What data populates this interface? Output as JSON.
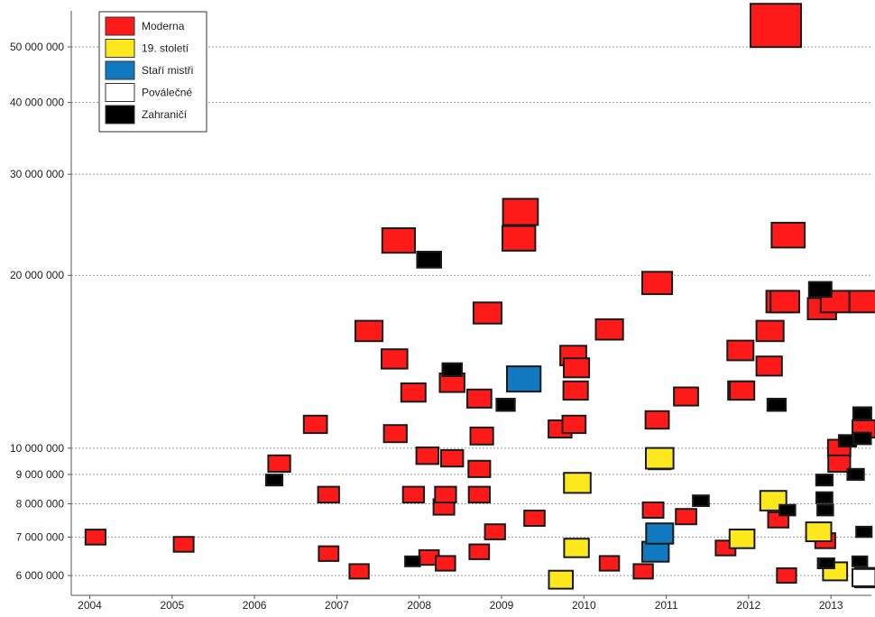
{
  "chart_data": {
    "type": "scatter",
    "title": "",
    "xlabel": "",
    "ylabel": "",
    "x_ticks": [
      "2004",
      "2005",
      "2006",
      "2007",
      "2008",
      "2009",
      "2010",
      "2011",
      "2012",
      "2013"
    ],
    "y_ticks": [
      {
        "value": 6000000,
        "label": "6 000 000"
      },
      {
        "value": 7000000,
        "label": "7 000 000"
      },
      {
        "value": 8000000,
        "label": "8 000 000"
      },
      {
        "value": 9000000,
        "label": "9 000 000"
      },
      {
        "value": 10000000,
        "label": "10 000 000"
      },
      {
        "value": 20000000,
        "label": "20 000 000"
      },
      {
        "value": 30000000,
        "label": "30 000 000"
      },
      {
        "value": 40000000,
        "label": "40 000 000"
      },
      {
        "value": 50000000,
        "label": "50 000 000"
      }
    ],
    "y_scale": "log",
    "ylim": [
      5600000,
      58000000
    ],
    "xlim": [
      2003.9,
      2013.45
    ],
    "grid": "horizontal dotted",
    "legend_position": "top-left",
    "series": [
      {
        "name": "Moderna",
        "color": "#ff1a1a",
        "points": [
          {
            "x": 2004.07,
            "y": 7000000
          },
          {
            "x": 2005.14,
            "y": 6800000
          },
          {
            "x": 2006.3,
            "y": 9400000
          },
          {
            "x": 2006.74,
            "y": 11000000
          },
          {
            "x": 2006.9,
            "y": 8300000
          },
          {
            "x": 2006.9,
            "y": 6550000
          },
          {
            "x": 2007.27,
            "y": 6100000
          },
          {
            "x": 2007.39,
            "y": 16000000
          },
          {
            "x": 2007.7,
            "y": 14300000
          },
          {
            "x": 2007.71,
            "y": 10600000
          },
          {
            "x": 2007.75,
            "y": 23000000
          },
          {
            "x": 2007.93,
            "y": 12500000
          },
          {
            "x": 2007.93,
            "y": 8300000
          },
          {
            "x": 2008.1,
            "y": 9700000
          },
          {
            "x": 2008.12,
            "y": 6450000
          },
          {
            "x": 2008.3,
            "y": 7900000
          },
          {
            "x": 2008.32,
            "y": 8300000
          },
          {
            "x": 2008.32,
            "y": 6300000
          },
          {
            "x": 2008.4,
            "y": 13000000
          },
          {
            "x": 2008.4,
            "y": 9600000
          },
          {
            "x": 2008.73,
            "y": 6600000
          },
          {
            "x": 2008.73,
            "y": 12200000
          },
          {
            "x": 2008.73,
            "y": 9200000
          },
          {
            "x": 2008.73,
            "y": 8300000
          },
          {
            "x": 2008.76,
            "y": 10500000
          },
          {
            "x": 2008.83,
            "y": 17200000
          },
          {
            "x": 2008.92,
            "y": 7150000
          },
          {
            "x": 2009.21,
            "y": 23200000
          },
          {
            "x": 2009.23,
            "y": 25800000
          },
          {
            "x": 2009.27,
            "y": 13200000
          },
          {
            "x": 2009.4,
            "y": 7550000
          },
          {
            "x": 2009.71,
            "y": 10800000
          },
          {
            "x": 2009.87,
            "y": 14500000
          },
          {
            "x": 2009.88,
            "y": 11000000
          },
          {
            "x": 2009.9,
            "y": 12600000
          },
          {
            "x": 2009.91,
            "y": 13800000
          },
          {
            "x": 2010.31,
            "y": 6300000
          },
          {
            "x": 2010.31,
            "y": 16100000
          },
          {
            "x": 2010.72,
            "y": 6100000
          },
          {
            "x": 2010.84,
            "y": 7800000
          },
          {
            "x": 2010.89,
            "y": 19400000
          },
          {
            "x": 2010.89,
            "y": 11200000
          },
          {
            "x": 2010.92,
            "y": 9500000
          },
          {
            "x": 2011.24,
            "y": 7600000
          },
          {
            "x": 2011.24,
            "y": 12300000
          },
          {
            "x": 2011.72,
            "y": 6700000
          },
          {
            "x": 2011.9,
            "y": 14800000
          },
          {
            "x": 2011.9,
            "y": 12600000
          },
          {
            "x": 2011.92,
            "y": 12600000
          },
          {
            "x": 2011.92,
            "y": 6950000
          },
          {
            "x": 2012.25,
            "y": 13900000
          },
          {
            "x": 2012.26,
            "y": 16000000
          },
          {
            "x": 2012.33,
            "y": 54500000
          },
          {
            "x": 2012.36,
            "y": 7500000
          },
          {
            "x": 2012.39,
            "y": 18000000
          },
          {
            "x": 2012.44,
            "y": 18000000
          },
          {
            "x": 2012.46,
            "y": 6000000
          },
          {
            "x": 2012.48,
            "y": 23500000
          },
          {
            "x": 2012.89,
            "y": 17500000
          },
          {
            "x": 2012.93,
            "y": 6900000
          },
          {
            "x": 2013.05,
            "y": 18000000
          },
          {
            "x": 2013.1,
            "y": 10000000
          },
          {
            "x": 2013.1,
            "y": 9400000
          },
          {
            "x": 2013.4,
            "y": 18000000
          },
          {
            "x": 2013.4,
            "y": 10800000
          }
        ]
      },
      {
        "name": "19. století",
        "color": "#fce81d",
        "points": [
          {
            "x": 2009.72,
            "y": 5900000
          },
          {
            "x": 2009.91,
            "y": 6700000
          },
          {
            "x": 2009.92,
            "y": 8700000
          },
          {
            "x": 2010.92,
            "y": 9600000
          },
          {
            "x": 2011.92,
            "y": 6950000
          },
          {
            "x": 2012.3,
            "y": 8100000
          },
          {
            "x": 2012.85,
            "y": 7150000
          },
          {
            "x": 2013.05,
            "y": 6100000
          }
        ]
      },
      {
        "name": "Staří mistři",
        "color": "#1079c0",
        "points": [
          {
            "x": 2009.27,
            "y": 13200000
          },
          {
            "x": 2010.87,
            "y": 6600000
          },
          {
            "x": 2010.92,
            "y": 7100000
          },
          {
            "x": 2013.45,
            "y": 5950000
          }
        ]
      },
      {
        "name": "Poválečné",
        "color": "#ffffff",
        "points": [
          {
            "x": 2013.4,
            "y": 5950000
          }
        ]
      },
      {
        "name": "Zahraničí",
        "color": "#000000",
        "points": [
          {
            "x": 2006.24,
            "y": 8800000
          },
          {
            "x": 2007.92,
            "y": 6350000
          },
          {
            "x": 2008.12,
            "y": 21300000
          },
          {
            "x": 2008.4,
            "y": 13700000
          },
          {
            "x": 2009.05,
            "y": 11900000
          },
          {
            "x": 2011.42,
            "y": 8100000
          },
          {
            "x": 2012.34,
            "y": 11900000
          },
          {
            "x": 2012.47,
            "y": 7800000
          },
          {
            "x": 2012.87,
            "y": 18900000
          },
          {
            "x": 2012.92,
            "y": 8800000
          },
          {
            "x": 2012.92,
            "y": 8200000
          },
          {
            "x": 2012.93,
            "y": 7800000
          },
          {
            "x": 2012.93,
            "y": 6300000
          },
          {
            "x": 2012.95,
            "y": 6300000
          },
          {
            "x": 2013.2,
            "y": 10300000
          },
          {
            "x": 2013.3,
            "y": 9000000
          },
          {
            "x": 2013.35,
            "y": 6350000
          },
          {
            "x": 2013.38,
            "y": 11500000
          },
          {
            "x": 2013.38,
            "y": 10400000
          },
          {
            "x": 2013.4,
            "y": 7150000
          }
        ]
      }
    ]
  }
}
